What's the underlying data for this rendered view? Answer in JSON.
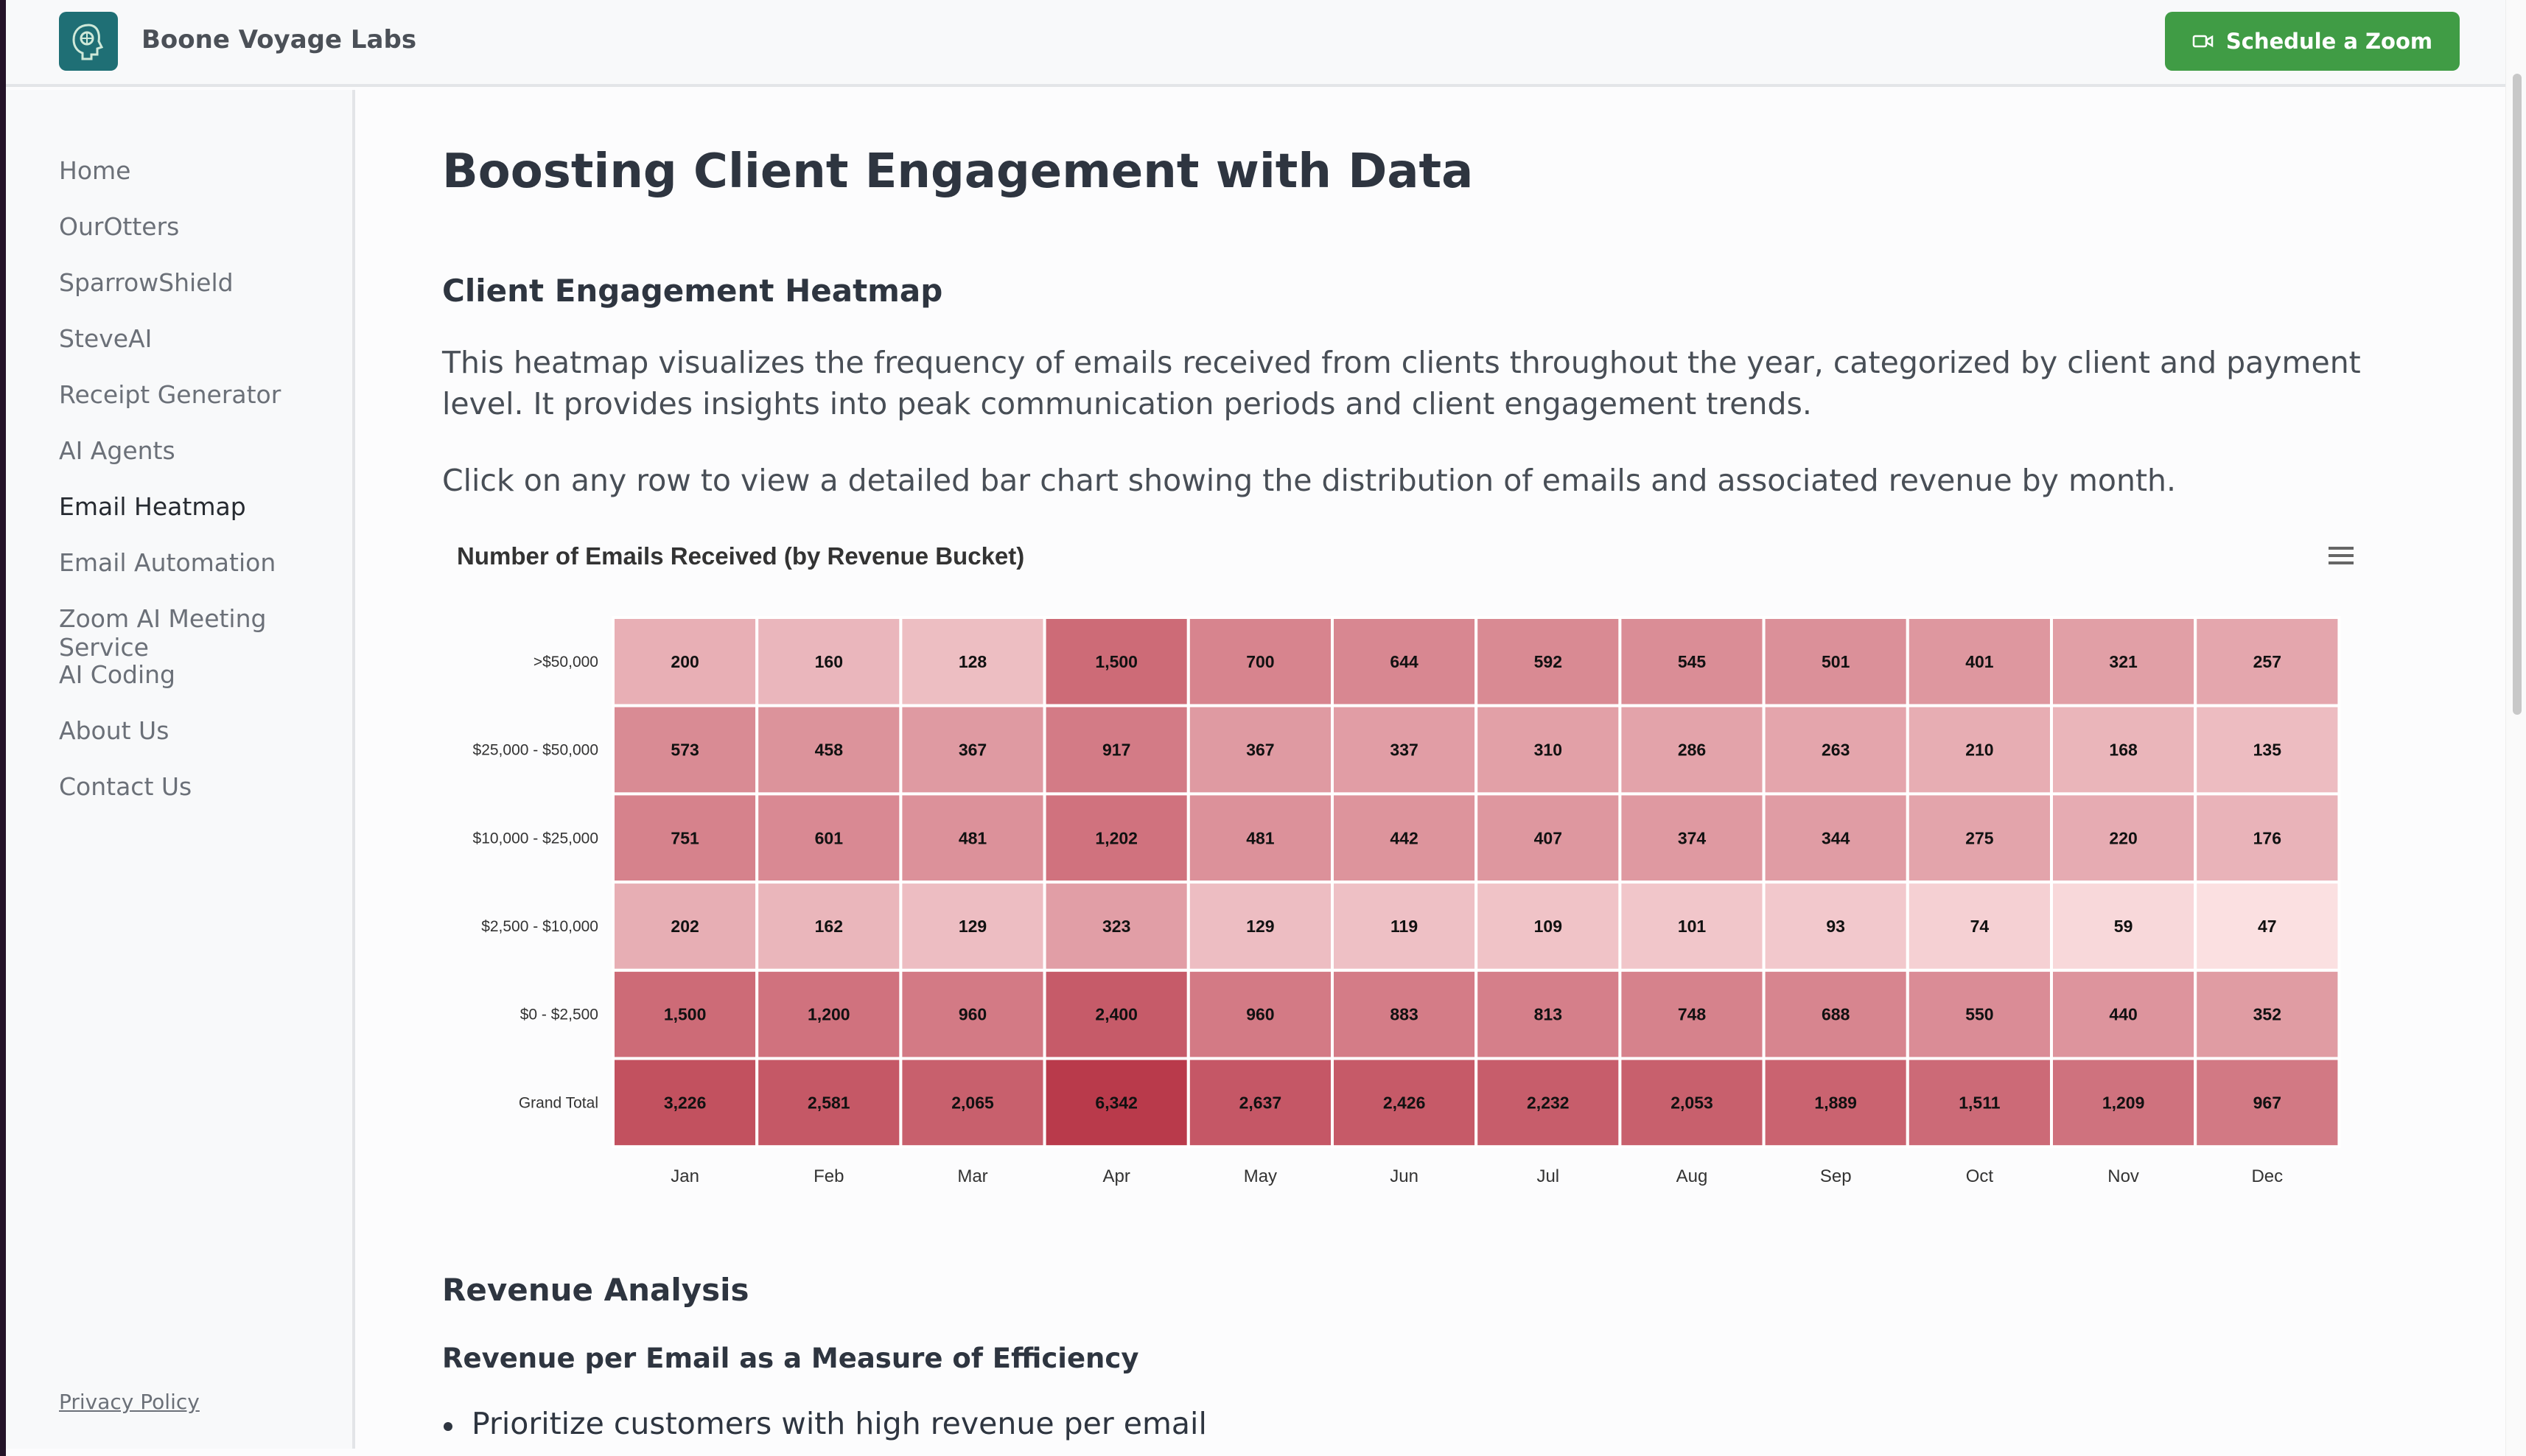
{
  "brand": {
    "name": "Boone Voyage Labs"
  },
  "header": {
    "zoom_button": "Schedule a Zoom"
  },
  "sidebar": {
    "items": [
      {
        "label": "Home"
      },
      {
        "label": "OurOtters"
      },
      {
        "label": "SparrowShield"
      },
      {
        "label": "SteveAI"
      },
      {
        "label": "Receipt Generator"
      },
      {
        "label": "AI Agents"
      },
      {
        "label": "Email Heatmap",
        "active": true
      },
      {
        "label": "Email Automation"
      },
      {
        "label": "Zoom AI Meeting Service"
      },
      {
        "label": "AI Coding"
      },
      {
        "label": "About Us"
      },
      {
        "label": "Contact Us"
      }
    ],
    "privacy": "Privacy Policy"
  },
  "main": {
    "title": "Boosting Client Engagement with Data",
    "heatmap_heading": "Client Engagement Heatmap",
    "desc1": "This heatmap visualizes the frequency of emails received from clients throughout the year, categorized by client and payment level. It provides insights into peak communication periods and client engagement trends.",
    "desc2": "Click on any row to view a detailed bar chart showing the distribution of emails and associated revenue by month.",
    "revenue_heading": "Revenue Analysis",
    "efficiency_heading": "Revenue per Email as a Measure of Efficiency",
    "bullet1": "Prioritize customers with high revenue per email"
  },
  "colors": {
    "accent": "#409c45",
    "heat_low": "#fde5e6",
    "heat_high": "#b9394a"
  },
  "chart_data": {
    "type": "heatmap",
    "title": "Number of Emails Received (by Revenue Bucket)",
    "x": [
      "Jan",
      "Feb",
      "Mar",
      "Apr",
      "May",
      "Jun",
      "Jul",
      "Aug",
      "Sep",
      "Oct",
      "Nov",
      "Dec"
    ],
    "y": [
      ">$50,000",
      "$25,000 - $50,000",
      "$10,000 - $25,000",
      "$2,500 - $10,000",
      "$0 - $2,500",
      "Grand Total"
    ],
    "values": [
      [
        200,
        160,
        128,
        1500,
        700,
        644,
        592,
        545,
        501,
        401,
        321,
        257
      ],
      [
        573,
        458,
        367,
        917,
        367,
        337,
        310,
        286,
        263,
        210,
        168,
        135
      ],
      [
        751,
        601,
        481,
        1202,
        481,
        442,
        407,
        374,
        344,
        275,
        220,
        176
      ],
      [
        202,
        162,
        129,
        323,
        129,
        119,
        109,
        101,
        93,
        74,
        59,
        47
      ],
      [
        1500,
        1200,
        960,
        2400,
        960,
        883,
        813,
        748,
        688,
        550,
        440,
        352
      ],
      [
        3226,
        2581,
        2065,
        6342,
        2637,
        2426,
        2232,
        2053,
        1889,
        1511,
        1209,
        967
      ]
    ],
    "legend": "none"
  }
}
